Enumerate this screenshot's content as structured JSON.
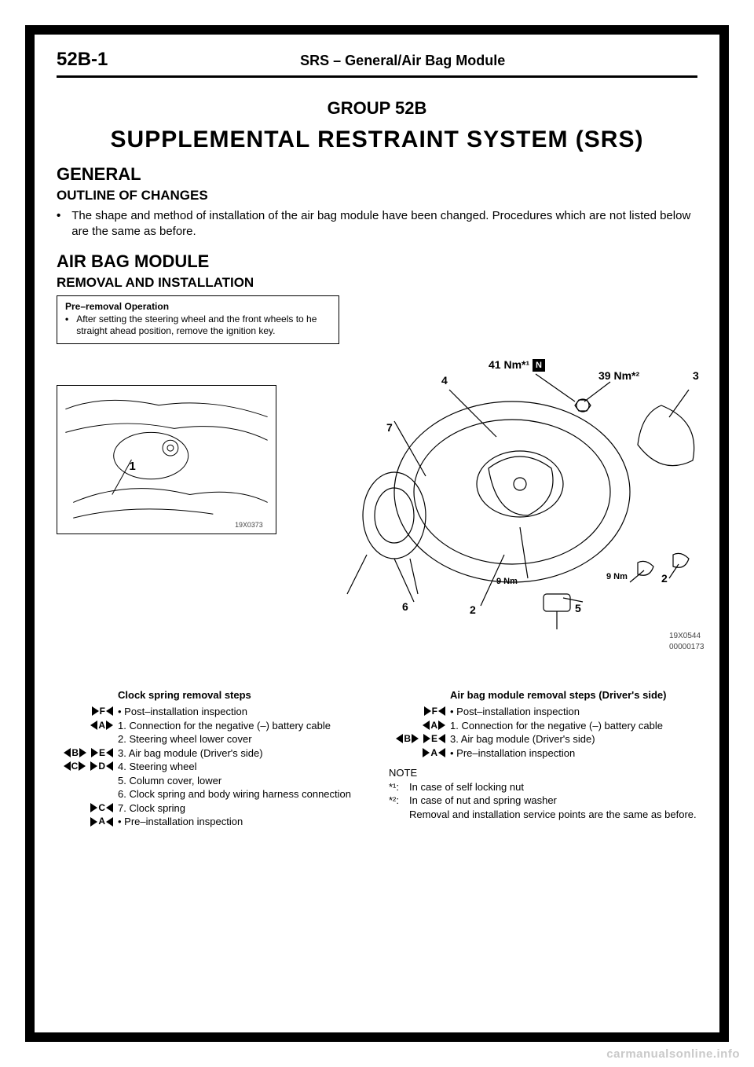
{
  "header": {
    "page_number": "52B-1",
    "title": "SRS – General/Air Bag Module"
  },
  "group_title": "GROUP 52B",
  "main_title": "SUPPLEMENTAL RESTRAINT SYSTEM (SRS)",
  "general": {
    "heading": "GENERAL",
    "outline_heading": "OUTLINE OF CHANGES",
    "outline_text": "The shape and method of installation of the air bag module have been changed. Procedures which are not listed below are the same as before."
  },
  "airbag": {
    "heading": "AIR BAG MODULE",
    "sub_heading": "REMOVAL AND INSTALLATION"
  },
  "op_box": {
    "title": "Pre–removal Operation",
    "text": "After setting the steering wheel and the front wheels to he straight ahead position, remove the ignition key."
  },
  "diagram": {
    "torque_41": "41 Nm*¹",
    "n_symbol": "N",
    "torque_39": "39 Nm*²",
    "torque_9a": "9 Nm",
    "torque_9b": "9 Nm",
    "callout_1": "1",
    "callout_2a": "2",
    "callout_2b": "2",
    "callout_3": "3",
    "callout_4": "4",
    "callout_5": "5",
    "callout_6": "6",
    "callout_7": "7",
    "small_code": "19X0373",
    "big_code": "19X0544",
    "doc_code": "00000173"
  },
  "steps_left": {
    "title": "Clock spring removal steps",
    "items": [
      {
        "lsym": "",
        "rsym": "▶F◀",
        "text": "• Post–installation inspection"
      },
      {
        "lsym": "◀A▶",
        "rsym": "",
        "text": "1. Connection for the negative (–) battery cable"
      },
      {
        "lsym": "",
        "rsym": "",
        "text": "2. Steering wheel lower cover"
      },
      {
        "lsym": "◀B▶",
        "rsym": "▶E◀",
        "text": "3. Air bag module (Driver's side)"
      },
      {
        "lsym": "◀C▶",
        "rsym": "▶D◀",
        "text": "4. Steering wheel"
      },
      {
        "lsym": "",
        "rsym": "",
        "text": "5. Column cover, lower"
      },
      {
        "lsym": "",
        "rsym": "",
        "text": "6. Clock spring and body wiring harness connection"
      },
      {
        "lsym": "",
        "rsym": "▶C◀",
        "text": "7. Clock spring"
      },
      {
        "lsym": "",
        "rsym": "▶A◀",
        "text": "• Pre–installation inspection"
      }
    ]
  },
  "steps_right": {
    "title": "Air bag module removal steps (Driver's side)",
    "items": [
      {
        "lsym": "",
        "rsym": "▶F◀",
        "text": "• Post–installation inspection"
      },
      {
        "lsym": "◀A▶",
        "rsym": "",
        "text": "1. Connection for the negative (–) battery cable"
      },
      {
        "lsym": "◀B▶",
        "rsym": "▶E◀",
        "text": "3. Air bag module (Driver's side)"
      },
      {
        "lsym": "",
        "rsym": "▶A◀",
        "text": "• Pre–installation inspection"
      }
    ]
  },
  "note": {
    "title": "NOTE",
    "n1_label": "*¹:",
    "n1_text": "In case of self locking nut",
    "n2_label": "*²:",
    "n2_text": "In case of nut and spring washer",
    "extra": "Removal and installation service points are the same as before."
  },
  "watermark": "carmanualsonline.info"
}
